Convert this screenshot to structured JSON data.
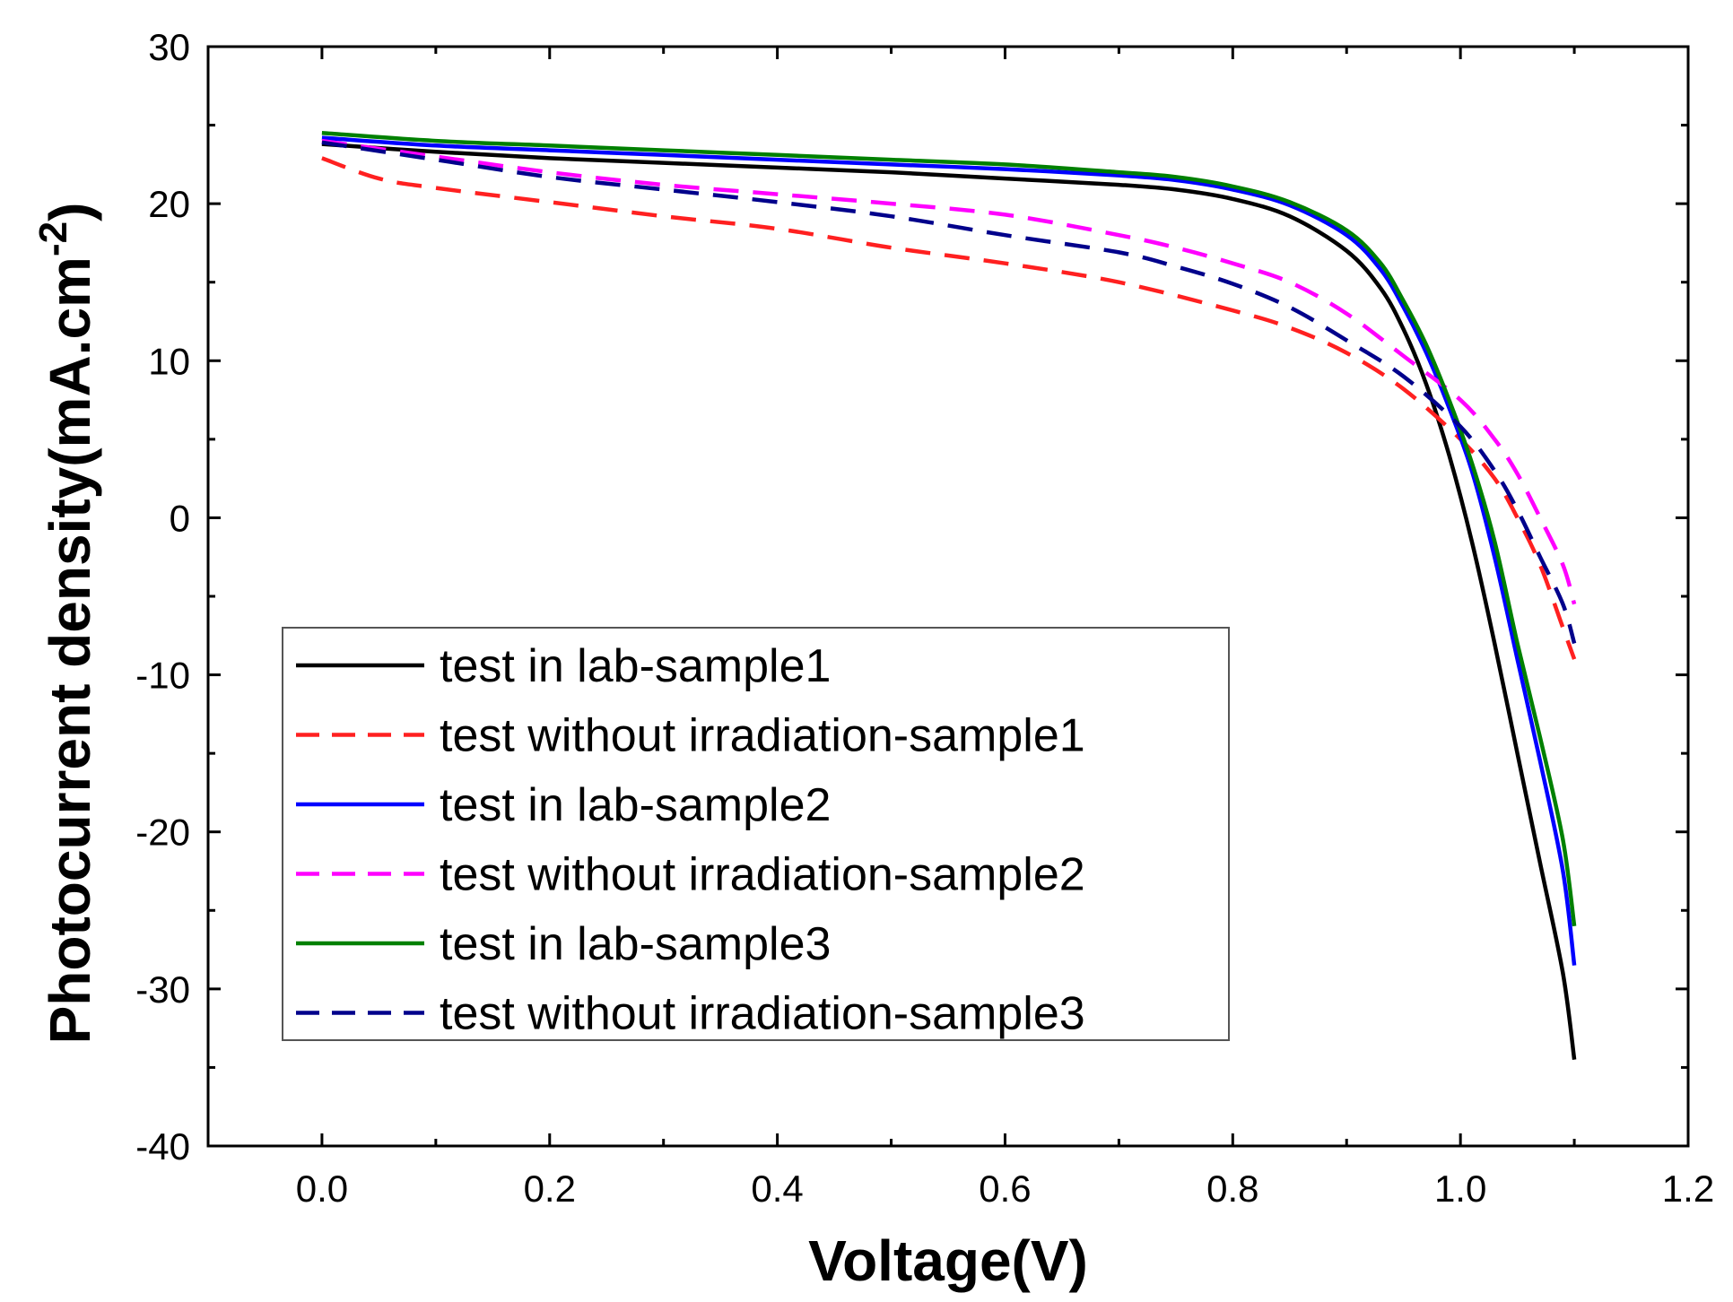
{
  "chart_data": {
    "type": "line",
    "title": "",
    "xlabel": "Voltage(V)",
    "ylabel": "Photocurrent density(mA.cm",
    "ylabel_superscript": "-2",
    "ylabel_close": ")",
    "xlim": [
      -0.1,
      1.2
    ],
    "ylim": [
      -40,
      30
    ],
    "x_ticks": [
      0.0,
      0.2,
      0.4,
      0.6,
      0.8,
      1.0,
      1.2
    ],
    "x_tick_labels": [
      "0.0",
      "0.2",
      "0.4",
      "0.6",
      "0.8",
      "1.0",
      "1.2"
    ],
    "y_ticks": [
      30,
      20,
      10,
      0,
      -10,
      -20,
      -30,
      -40
    ],
    "y_tick_labels": [
      "30",
      "20",
      "10",
      "0",
      "-10",
      "-20",
      "-30",
      "-40"
    ],
    "grid": false,
    "legend_position": "lower-left",
    "series": [
      {
        "name": "test in lab-sample1",
        "color": "#000000",
        "dash": "solid",
        "points": [
          [
            0.0,
            23.8
          ],
          [
            0.1,
            23.3
          ],
          [
            0.2,
            22.9
          ],
          [
            0.3,
            22.6
          ],
          [
            0.4,
            22.3
          ],
          [
            0.5,
            22.0
          ],
          [
            0.6,
            21.6
          ],
          [
            0.7,
            21.2
          ],
          [
            0.75,
            20.9
          ],
          [
            0.8,
            20.3
          ],
          [
            0.85,
            19.2
          ],
          [
            0.9,
            17.0
          ],
          [
            0.93,
            14.6
          ],
          [
            0.95,
            12.0
          ],
          [
            0.97,
            8.5
          ],
          [
            0.99,
            4.0
          ],
          [
            1.01,
            -1.5
          ],
          [
            1.03,
            -8.0
          ],
          [
            1.05,
            -15.0
          ],
          [
            1.07,
            -22.0
          ],
          [
            1.09,
            -29.0
          ],
          [
            1.1,
            -34.5
          ]
        ]
      },
      {
        "name": "test without irradiation-sample1",
        "color": "#ff2020",
        "dash": "dashed",
        "points": [
          [
            0.0,
            22.9
          ],
          [
            0.05,
            21.6
          ],
          [
            0.1,
            21.0
          ],
          [
            0.2,
            20.1
          ],
          [
            0.3,
            19.2
          ],
          [
            0.4,
            18.4
          ],
          [
            0.5,
            17.2
          ],
          [
            0.6,
            16.2
          ],
          [
            0.7,
            15.0
          ],
          [
            0.8,
            13.2
          ],
          [
            0.85,
            12.1
          ],
          [
            0.9,
            10.5
          ],
          [
            0.95,
            8.2
          ],
          [
            1.0,
            5.0
          ],
          [
            1.03,
            2.5
          ],
          [
            1.05,
            0.0
          ],
          [
            1.07,
            -3.0
          ],
          [
            1.09,
            -7.0
          ],
          [
            1.1,
            -9.0
          ]
        ]
      },
      {
        "name": "test in lab-sample2",
        "color": "#0000ff",
        "dash": "solid",
        "points": [
          [
            0.0,
            24.2
          ],
          [
            0.1,
            23.7
          ],
          [
            0.2,
            23.4
          ],
          [
            0.3,
            23.1
          ],
          [
            0.4,
            22.8
          ],
          [
            0.5,
            22.5
          ],
          [
            0.6,
            22.2
          ],
          [
            0.7,
            21.8
          ],
          [
            0.75,
            21.5
          ],
          [
            0.8,
            20.9
          ],
          [
            0.85,
            19.9
          ],
          [
            0.9,
            18.0
          ],
          [
            0.93,
            15.8
          ],
          [
            0.95,
            13.4
          ],
          [
            0.97,
            10.5
          ],
          [
            0.99,
            7.0
          ],
          [
            1.01,
            3.0
          ],
          [
            1.03,
            -2.5
          ],
          [
            1.05,
            -9.0
          ],
          [
            1.07,
            -15.5
          ],
          [
            1.09,
            -22.5
          ],
          [
            1.1,
            -28.5
          ]
        ]
      },
      {
        "name": "test without irradiation-sample2",
        "color": "#ff00ff",
        "dash": "dashed",
        "points": [
          [
            0.0,
            24.0
          ],
          [
            0.1,
            23.0
          ],
          [
            0.2,
            22.0
          ],
          [
            0.3,
            21.2
          ],
          [
            0.4,
            20.6
          ],
          [
            0.5,
            20.0
          ],
          [
            0.6,
            19.3
          ],
          [
            0.7,
            18.0
          ],
          [
            0.75,
            17.2
          ],
          [
            0.8,
            16.2
          ],
          [
            0.85,
            15.0
          ],
          [
            0.9,
            13.0
          ],
          [
            0.95,
            10.3
          ],
          [
            1.0,
            7.5
          ],
          [
            1.03,
            5.0
          ],
          [
            1.05,
            2.8
          ],
          [
            1.07,
            0.0
          ],
          [
            1.09,
            -3.0
          ],
          [
            1.1,
            -5.5
          ]
        ]
      },
      {
        "name": "test in lab-sample3",
        "color": "#008000",
        "dash": "solid",
        "points": [
          [
            0.0,
            24.5
          ],
          [
            0.1,
            24.0
          ],
          [
            0.2,
            23.7
          ],
          [
            0.3,
            23.4
          ],
          [
            0.4,
            23.1
          ],
          [
            0.5,
            22.8
          ],
          [
            0.6,
            22.5
          ],
          [
            0.7,
            22.0
          ],
          [
            0.75,
            21.7
          ],
          [
            0.8,
            21.1
          ],
          [
            0.85,
            20.1
          ],
          [
            0.9,
            18.3
          ],
          [
            0.93,
            16.2
          ],
          [
            0.95,
            13.8
          ],
          [
            0.97,
            11.0
          ],
          [
            0.99,
            7.5
          ],
          [
            1.01,
            3.5
          ],
          [
            1.03,
            -1.5
          ],
          [
            1.05,
            -8.0
          ],
          [
            1.07,
            -14.0
          ],
          [
            1.09,
            -20.5
          ],
          [
            1.1,
            -26.0
          ]
        ]
      },
      {
        "name": "test without irradiation-sample3",
        "color": "#00008b",
        "dash": "dashed",
        "points": [
          [
            0.0,
            23.9
          ],
          [
            0.1,
            22.8
          ],
          [
            0.2,
            21.7
          ],
          [
            0.3,
            20.9
          ],
          [
            0.4,
            20.1
          ],
          [
            0.5,
            19.2
          ],
          [
            0.6,
            18.0
          ],
          [
            0.7,
            16.9
          ],
          [
            0.75,
            16.0
          ],
          [
            0.8,
            14.9
          ],
          [
            0.85,
            13.4
          ],
          [
            0.9,
            11.3
          ],
          [
            0.95,
            9.0
          ],
          [
            1.0,
            5.8
          ],
          [
            1.03,
            3.0
          ],
          [
            1.05,
            0.5
          ],
          [
            1.07,
            -2.5
          ],
          [
            1.09,
            -5.5
          ],
          [
            1.1,
            -8.0
          ]
        ]
      }
    ]
  }
}
